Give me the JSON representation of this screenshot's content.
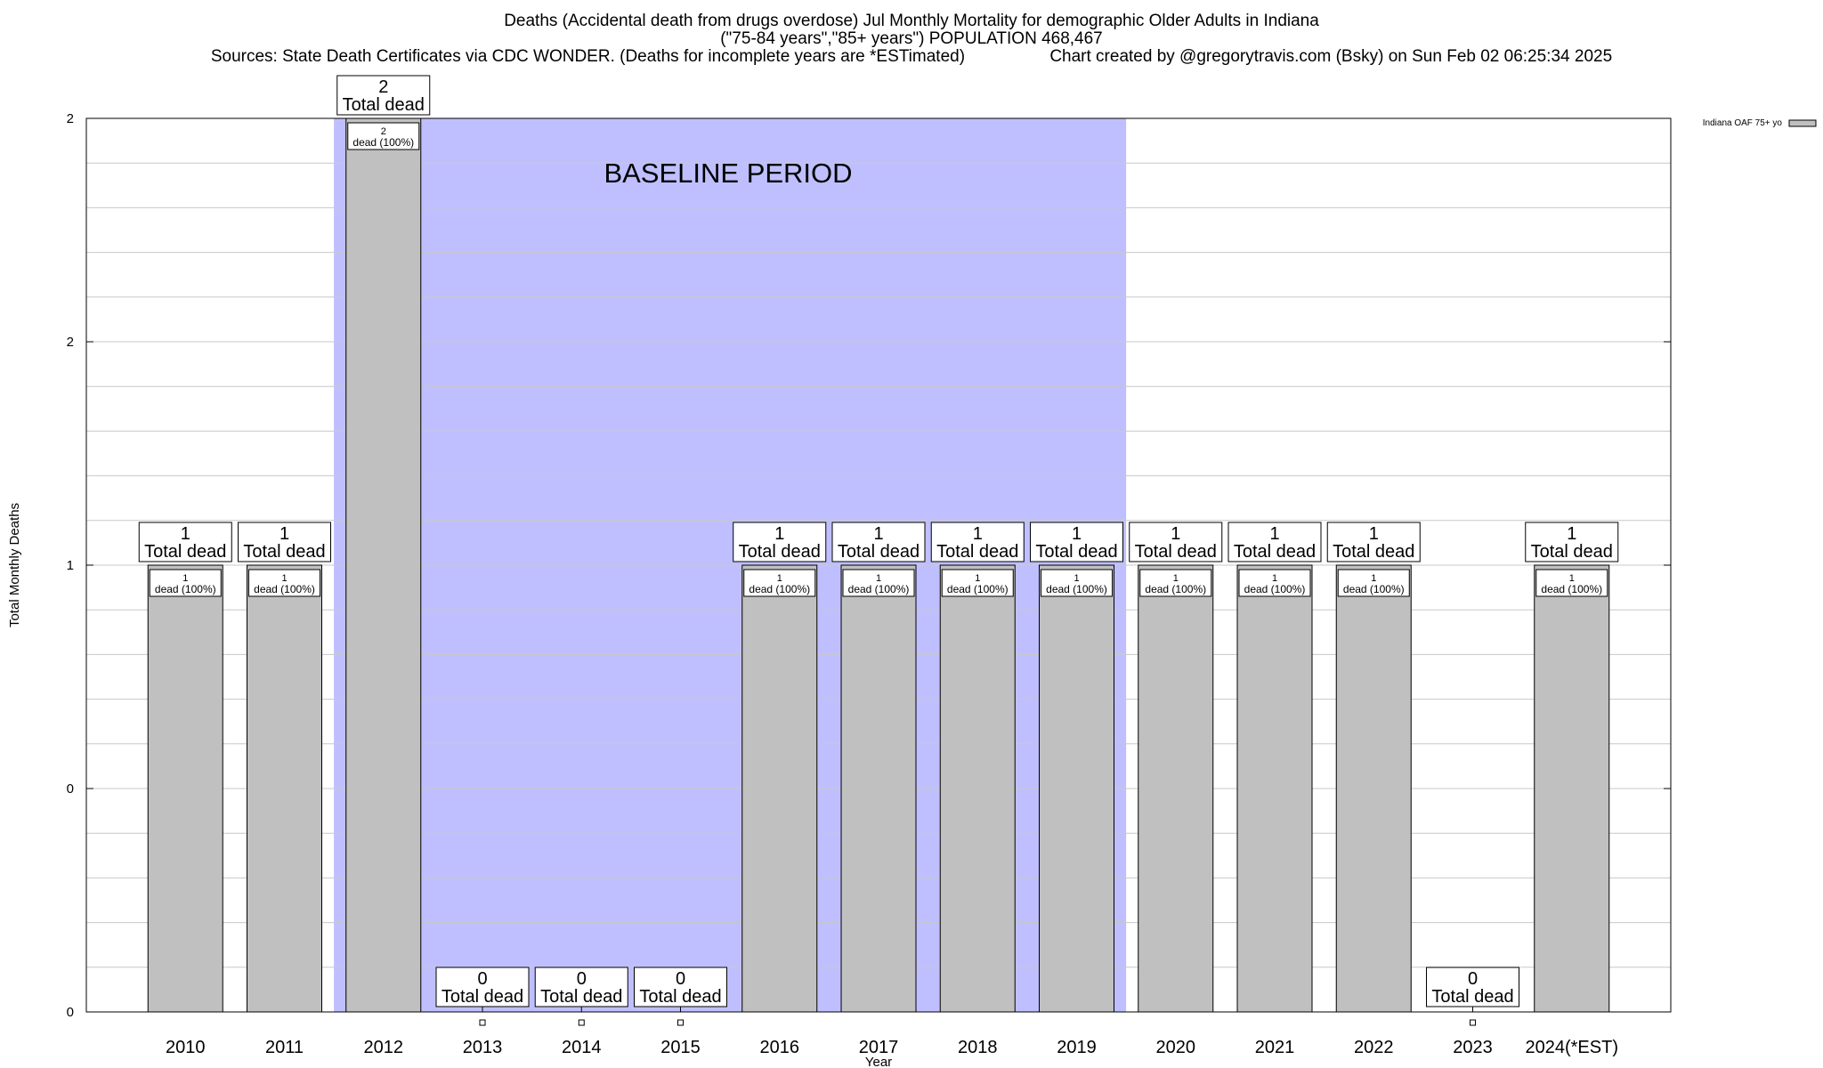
{
  "header": {
    "title_line1": "Deaths (Accidental death from drugs overdose) Jul Monthly Mortality for demographic Older Adults in Indiana",
    "title_line2": "(\"75-84 years\",\"85+ years\") POPULATION 468,467",
    "sources": "Sources: State Death Certificates via CDC WONDER. (Deaths for incomplete years are *ESTimated)",
    "credit": "Chart created by @gregorytravis.com (Bsky) on Sun Feb 02 06:25:34 2025"
  },
  "chart_data": {
    "type": "bar",
    "title": "Deaths (Accidental death from drugs overdose) Jul Monthly Mortality for demographic Older Adults in Indiana",
    "xlabel": "Year",
    "ylabel": "Total Monthly Deaths",
    "ylim": [
      0,
      2
    ],
    "y_tick_labels": [
      "0",
      "0",
      "1",
      "2",
      "2"
    ],
    "grid": true,
    "legend": {
      "placement": "top-right outside",
      "label": "Indiana OAF 75+ yo"
    },
    "baseline_annotation": "BASELINE PERIOD",
    "baseline_range": [
      "2012",
      "2019"
    ],
    "total_label_suffix": "Total dead",
    "segment_label_suffix": "dead (100%)",
    "categories": [
      "2010",
      "2011",
      "2012",
      "2013",
      "2014",
      "2015",
      "2016",
      "2017",
      "2018",
      "2019",
      "2020",
      "2021",
      "2022",
      "2023",
      "2024(*EST)"
    ],
    "series": [
      {
        "name": "Indiana OAF 75+ yo",
        "values": [
          1,
          1,
          2,
          0,
          0,
          0,
          1,
          1,
          1,
          1,
          1,
          1,
          1,
          0,
          1
        ]
      }
    ],
    "colors": {
      "bar": "#c0c0c0",
      "baseline": "#bfbfff",
      "grid": "#c8c8c8"
    }
  }
}
